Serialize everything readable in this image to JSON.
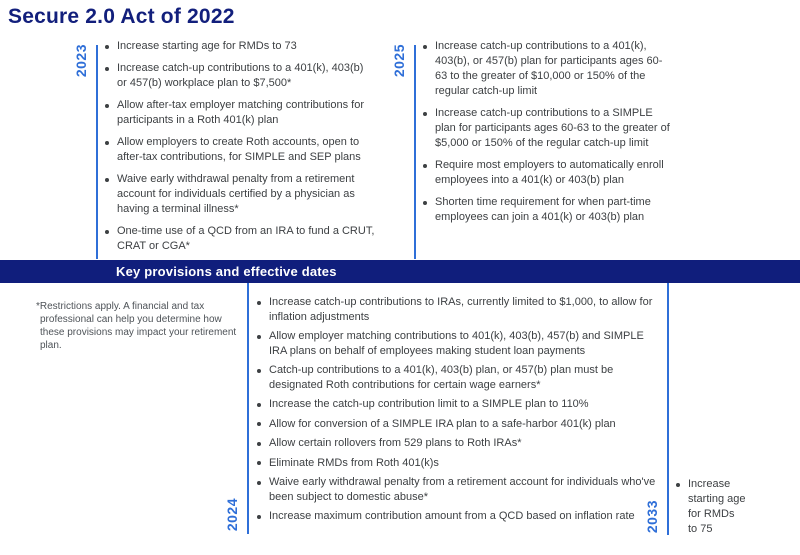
{
  "title": "Secure 2.0 Act of 2022",
  "banner": "Key provisions and effective dates",
  "footnote": "*Restrictions apply. A financial and tax professional can help you determine how these provisions may impact your retirement plan.",
  "colors": {
    "navy": "#101e7c",
    "accent_blue": "#2f6fd8",
    "body_text": "#3d4043",
    "footnote_text": "#4e5358",
    "banner_text": "#ffffff"
  },
  "groups": {
    "y2023": {
      "year": "2023",
      "items": [
        "Increase starting age for RMDs to 73",
        "Increase catch-up contributions to a 401(k), 403(b) or 457(b) workplace plan to $7,500*",
        "Allow after-tax employer matching contributions for participants in a Roth 401(k) plan",
        "Allow employers to create Roth accounts, open to after-tax contributions, for SIMPLE and SEP plans",
        "Waive early withdrawal penalty from a retirement account for individuals certified by a physician as having a terminal illness*",
        "One-time use of a QCD from an IRA to fund a CRUT, CRAT or CGA*"
      ]
    },
    "y2025": {
      "year": "2025",
      "items": [
        "Increase catch-up contributions to a 401(k), 403(b), or 457(b) plan for participants ages 60-63 to the greater of $10,000 or 150% of the regular catch-up limit",
        "Increase catch-up contributions to a SIMPLE plan for participants ages 60-63 to the greater of $5,000 or 150% of the regular catch-up limit",
        "Require most employers to automatically enroll employees into a 401(k) or 403(b) plan",
        "Shorten time requirement for when part-time employees can join a 401(k) or 403(b) plan"
      ]
    },
    "y2024": {
      "year": "2024",
      "items": [
        "Increase catch-up contributions to IRAs, currently limited to $1,000, to allow for inflation adjustments",
        "Allow employer matching contributions to 401(k), 403(b), 457(b) and SIMPLE IRA plans on behalf of employees making student loan payments",
        "Catch-up contributions to a 401(k), 403(b) plan, or 457(b) plan must be designated Roth contributions for certain wage earners*",
        "Increase the catch-up contribution limit to a SIMPLE plan to 110%",
        "Allow for conversion of a SIMPLE IRA plan to a safe-harbor 401(k) plan",
        "Allow certain rollovers from 529 plans to Roth IRAs*",
        "Eliminate RMDs from Roth 401(k)s",
        "Waive early withdrawal penalty from a retirement account for individuals who've been subject to domestic abuse*",
        "Increase maximum contribution amount from a QCD based on inflation rate"
      ]
    },
    "y2033": {
      "year": "2033",
      "items": [
        "Increase\nstarting age\nfor RMDs\nto 75"
      ]
    }
  }
}
